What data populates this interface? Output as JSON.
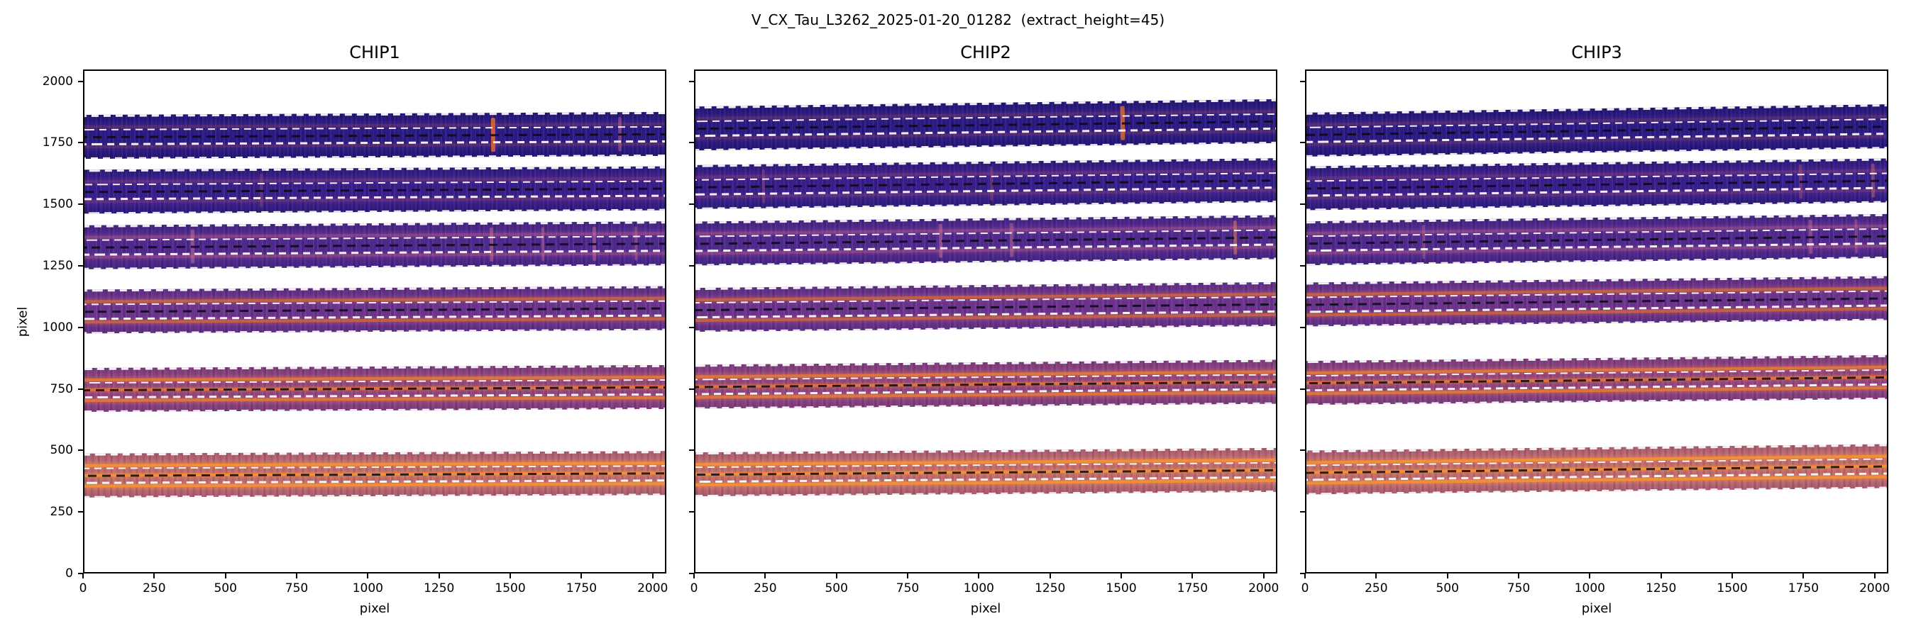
{
  "figure": {
    "title": "V_CX_Tau_L3262_2025-01-20_01282  (extract_height=45)"
  },
  "chart_data": {
    "type": "heatmap",
    "title": "V_CX_Tau_L3262_2025-01-20_01282  (extract_height=45)",
    "subtitle_note": "extraction trace overlay on 2D spectral image, 3 detector chips, 6 orders each",
    "extract_height": 45,
    "xlabel": "pixel",
    "ylabel": "pixel",
    "xlim": [
      0,
      2048
    ],
    "ylim": [
      0,
      2048
    ],
    "xticks": [
      0,
      250,
      500,
      750,
      1000,
      1250,
      1500,
      1750,
      2000
    ],
    "yticks": [
      0,
      250,
      500,
      750,
      1000,
      1250,
      1500,
      1750,
      2000
    ],
    "grid": false,
    "legend": "none",
    "guides": {
      "white_offsets": [
        -86,
        -30,
        30,
        86
      ],
      "black_offset": 0,
      "white_color": "#ffffff",
      "black_color": "#0a0814"
    },
    "panels": [
      {
        "title": "CHIP1",
        "orders": [
          {
            "y_center": 1785,
            "half_height": 90,
            "slope": 12,
            "palette": 0,
            "features": [
              {
                "x": 1455,
                "color": "#e06a30",
                "alpha": 0.85,
                "w": 6
              },
              {
                "x": 1900,
                "color": "#d06a85",
                "alpha": 0.45,
                "w": 5
              }
            ]
          },
          {
            "y_center": 1562,
            "half_height": 90,
            "slope": 14,
            "palette": 1,
            "features": [
              {
                "x": 640,
                "color": "#c05a75",
                "alpha": 0.3,
                "w": 4
              }
            ]
          },
          {
            "y_center": 1338,
            "half_height": 90,
            "slope": 16,
            "palette": 2,
            "features": [
              {
                "x": 400,
                "color": "#d4748e",
                "alpha": 0.5,
                "w": 5
              },
              {
                "x": 1450,
                "color": "#d4748e",
                "alpha": 0.45,
                "w": 5
              },
              {
                "x": 1630,
                "color": "#d4748e",
                "alpha": 0.4,
                "w": 4
              },
              {
                "x": 1810,
                "color": "#d4748e",
                "alpha": 0.45,
                "w": 5
              },
              {
                "x": 1955,
                "color": "#d4748e",
                "alpha": 0.4,
                "w": 4
              }
            ]
          },
          {
            "y_center": 1078,
            "half_height": 90,
            "slope": 14,
            "palette": 3,
            "features": []
          },
          {
            "y_center": 758,
            "half_height": 90,
            "slope": 12,
            "palette": 4,
            "features": []
          },
          {
            "y_center": 408,
            "half_height": 90,
            "slope": 10,
            "palette": 5,
            "features": []
          }
        ]
      },
      {
        "title": "CHIP2",
        "orders": [
          {
            "y_center": 1828,
            "half_height": 90,
            "slope": 30,
            "palette": 0,
            "features": [
              {
                "x": 1520,
                "color": "#e06a30",
                "alpha": 0.8,
                "w": 6
              }
            ]
          },
          {
            "y_center": 1588,
            "half_height": 90,
            "slope": 28,
            "palette": 1,
            "features": [
              {
                "x": 260,
                "color": "#c05a75",
                "alpha": 0.35,
                "w": 4
              },
              {
                "x": 1060,
                "color": "#c05a75",
                "alpha": 0.35,
                "w": 4
              }
            ]
          },
          {
            "y_center": 1358,
            "half_height": 90,
            "slope": 26,
            "palette": 2,
            "features": [
              {
                "x": 880,
                "color": "#d4748e",
                "alpha": 0.5,
                "w": 5
              },
              {
                "x": 1130,
                "color": "#d4748e",
                "alpha": 0.45,
                "w": 5
              },
              {
                "x": 1915,
                "color": "#e08a5a",
                "alpha": 0.5,
                "w": 5
              }
            ]
          },
          {
            "y_center": 1088,
            "half_height": 90,
            "slope": 24,
            "palette": 3,
            "features": []
          },
          {
            "y_center": 775,
            "half_height": 90,
            "slope": 20,
            "palette": 4,
            "features": []
          },
          {
            "y_center": 418,
            "half_height": 90,
            "slope": 18,
            "palette": 5,
            "features": []
          }
        ]
      },
      {
        "title": "CHIP3",
        "orders": [
          {
            "y_center": 1805,
            "half_height": 90,
            "slope": 34,
            "palette": 0,
            "features": []
          },
          {
            "y_center": 1585,
            "half_height": 90,
            "slope": 32,
            "palette": 1,
            "features": [
              {
                "x": 1755,
                "color": "#c05a75",
                "alpha": 0.4,
                "w": 5
              },
              {
                "x": 2010,
                "color": "#e07a50",
                "alpha": 0.4,
                "w": 5
              }
            ]
          },
          {
            "y_center": 1362,
            "half_height": 90,
            "slope": 30,
            "palette": 2,
            "features": [
              {
                "x": 430,
                "color": "#d4748e",
                "alpha": 0.4,
                "w": 4
              },
              {
                "x": 1790,
                "color": "#d4748e",
                "alpha": 0.45,
                "w": 5
              },
              {
                "x": 1950,
                "color": "#d4748e",
                "alpha": 0.4,
                "w": 4
              }
            ]
          },
          {
            "y_center": 1112,
            "half_height": 90,
            "slope": 26,
            "palette": 3,
            "features": []
          },
          {
            "y_center": 792,
            "half_height": 90,
            "slope": 24,
            "palette": 4,
            "features": []
          },
          {
            "y_center": 428,
            "half_height": 90,
            "slope": 26,
            "palette": 5,
            "features": []
          }
        ]
      }
    ]
  },
  "palettes": [
    {
      "base": "#2b1a86",
      "edge": "#221371",
      "stripe": "#c05a50",
      "stripe_alpha": 0.25,
      "stripe_offsets": [
        -40,
        40
      ]
    },
    {
      "base": "#381e8d",
      "edge": "#2c1876",
      "stripe": "#c05a6a",
      "stripe_alpha": 0.28,
      "stripe_offsets": [
        -40,
        40
      ]
    },
    {
      "base": "#50288f",
      "edge": "#422280",
      "stripe": "#cf6a85",
      "stripe_alpha": 0.4,
      "stripe_offsets": [
        -40,
        40
      ]
    },
    {
      "base": "#6d3390",
      "edge": "#5c2c81",
      "stripe": "#d66a3a",
      "stripe_alpha": 0.8,
      "stripe_offsets": [
        -42,
        40
      ]
    },
    {
      "base": "#8e4384",
      "edge": "#7a3a7a",
      "stripe": "#e67a38",
      "stripe_alpha": 0.9,
      "stripe_offsets": [
        -42,
        0,
        40
      ]
    },
    {
      "base": "#bd6a74",
      "edge": "#a8596e",
      "stripe": "#f08e3a",
      "stripe_alpha": 1.0,
      "stripe_offsets": [
        -42,
        0,
        40
      ]
    }
  ]
}
